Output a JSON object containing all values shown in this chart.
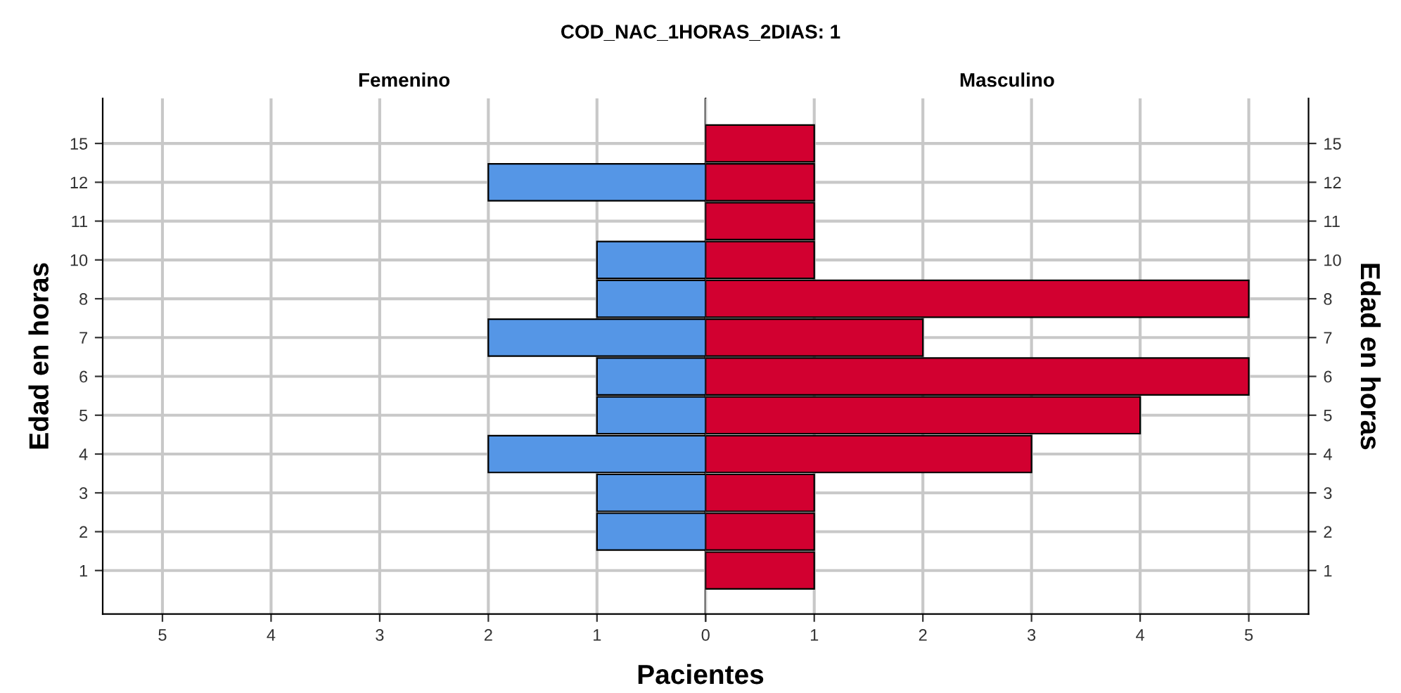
{
  "chart_data": [
    {
      "type": "bar",
      "orientation": "horizontal",
      "title": "COD_NAC_1HORAS_2DIAS: 1",
      "subtitle": "Femenino",
      "xlabel": "Pacientes",
      "ylabel": "Edad en horas",
      "categories": [
        "15",
        "12",
        "11",
        "10",
        "8",
        "7",
        "6",
        "5",
        "4",
        "3",
        "2",
        "1"
      ],
      "series": [
        {
          "color": "#5596e6",
          "values": [
            null,
            2,
            null,
            1,
            1,
            2,
            1,
            1,
            2,
            1,
            1,
            null
          ]
        }
      ],
      "xlim": [
        5.55,
        0
      ],
      "xticks": [
        5,
        4,
        3,
        2,
        1,
        {
          "value": 0,
          "label": null
        }
      ],
      "grid": true
    },
    {
      "type": "bar",
      "orientation": "horizontal",
      "subtitle": "Masculino",
      "ylabel": "Edad en horas",
      "categories": [
        "15",
        "12",
        "11",
        "10",
        "8",
        "7",
        "6",
        "5",
        "4",
        "3",
        "2",
        "1"
      ],
      "series": [
        {
          "color": "#d20030",
          "values": [
            1,
            1,
            1,
            1,
            5,
            2,
            5,
            4,
            3,
            1,
            1,
            1
          ]
        }
      ],
      "xlim": [
        0,
        5.55
      ],
      "xticks": [
        0,
        1,
        2,
        3,
        4,
        5
      ],
      "grid": true
    }
  ]
}
